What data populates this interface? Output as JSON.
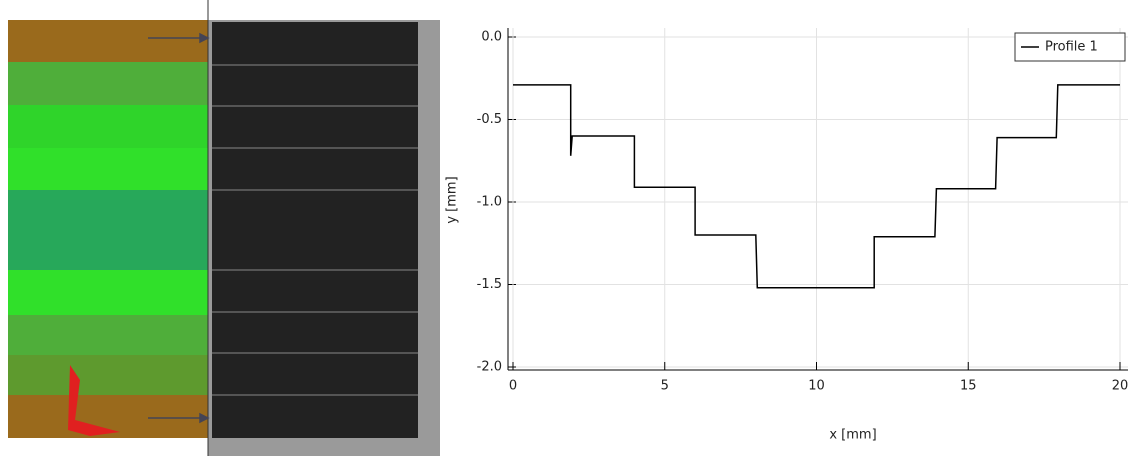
{
  "chart_data": {
    "type": "line",
    "xlabel": "x [mm]",
    "ylabel": "y [mm]",
    "series": [
      {
        "name": "Profile 1",
        "color": "#000000",
        "x": [
          0,
          1.9,
          1.9,
          1.95,
          4.0,
          4.0,
          6.0,
          6.0,
          8.0,
          8.05,
          11.9,
          11.9,
          13.9,
          13.95,
          15.9,
          15.95,
          17.9,
          17.95,
          20
        ],
        "values": [
          -0.29,
          -0.29,
          -0.72,
          -0.6,
          -0.6,
          -0.91,
          -0.91,
          -1.2,
          -1.2,
          -1.52,
          -1.52,
          -1.21,
          -1.21,
          -0.92,
          -0.92,
          -0.61,
          -0.61,
          -0.29,
          -0.29
        ]
      }
    ],
    "xlim": [
      0,
      20
    ],
    "xticks": [
      0,
      5,
      10,
      15,
      20
    ],
    "ylim": [
      -2,
      0
    ],
    "yticks": [
      {
        "value": 0,
        "label": "0.0"
      },
      -0.5,
      {
        "value": -1,
        "label": "-1.0"
      },
      -1.5,
      {
        "value": -2,
        "label": "-2.0"
      }
    ],
    "grid": true,
    "legend": "upper right"
  }
}
